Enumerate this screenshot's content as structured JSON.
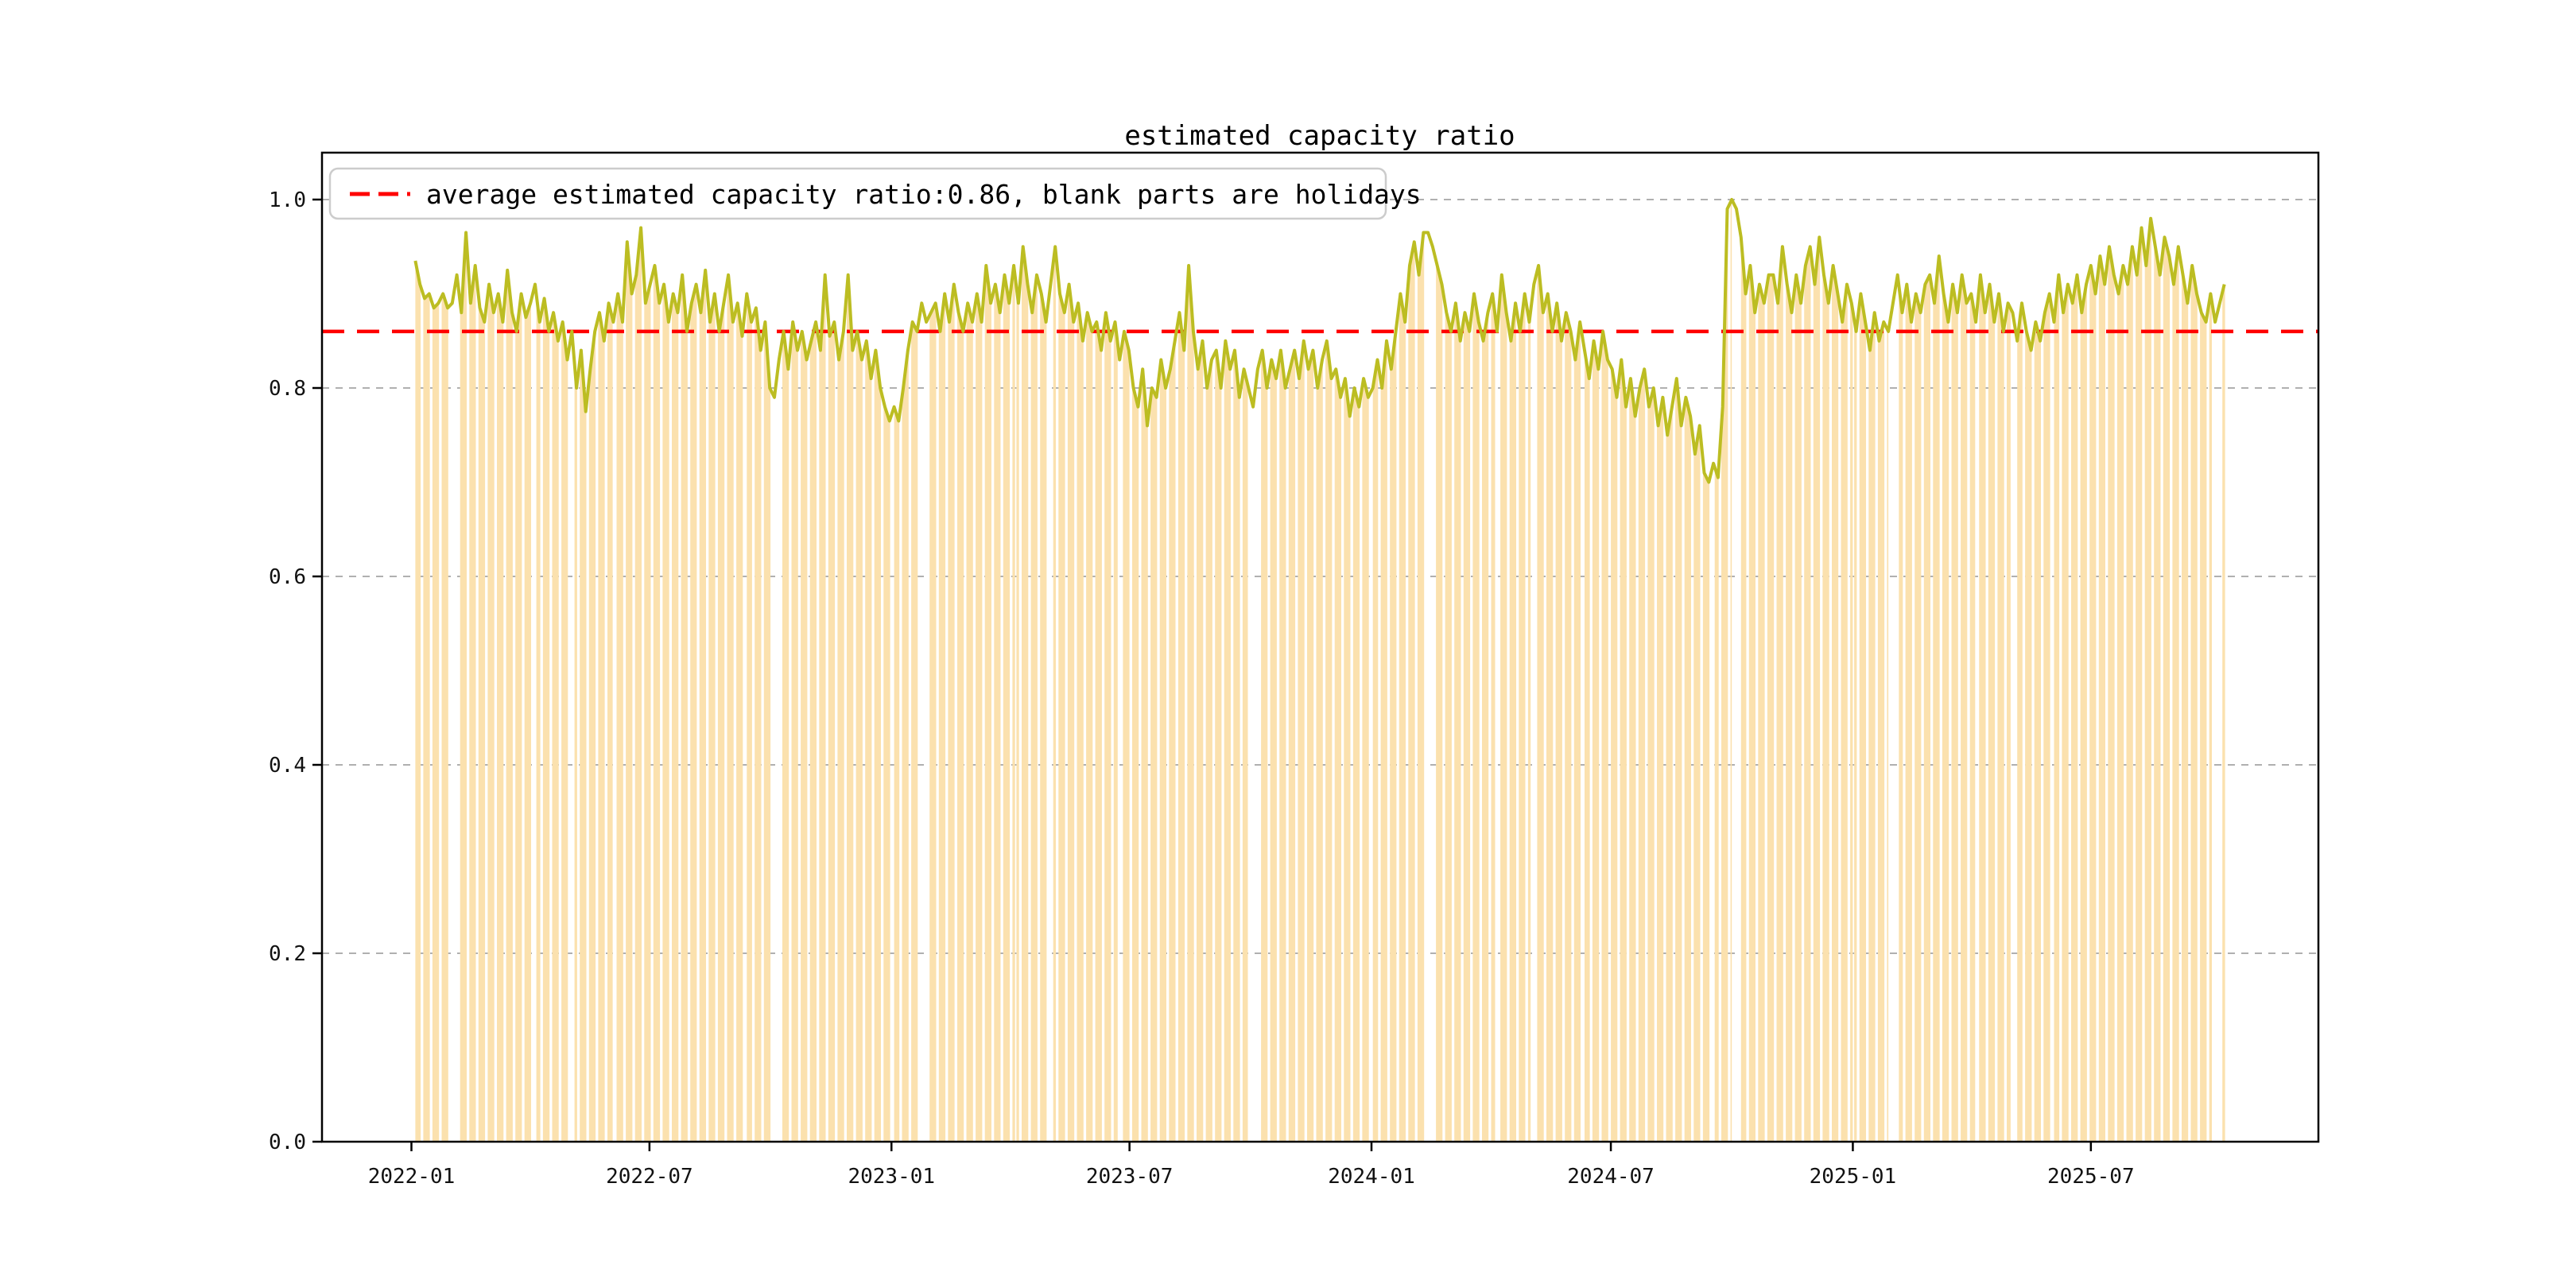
{
  "title": "estimated capacity ratio",
  "legend": {
    "label": "average estimated capacity ratio:0.86, blank parts are holidays",
    "swatch": "red-dashed-line"
  },
  "colors": {
    "line": "#bcbd22",
    "average_line": "#ff0000",
    "trading_band": "#fbe1ae",
    "grid": "#b0b0b0",
    "axis": "#000000",
    "legend_border": "#cccccc",
    "background": "#ffffff"
  },
  "axes": {
    "y_tick_labels": [
      "0.0",
      "0.2",
      "0.4",
      "0.6",
      "0.8",
      "1.0"
    ],
    "y_tick_values": [
      0.0,
      0.2,
      0.4,
      0.6,
      0.8,
      1.0
    ],
    "x_tick_labels": [
      "2022-01",
      "2022-07",
      "2023-01",
      "2023-07",
      "2024-01",
      "2024-07",
      "2025-01",
      "2025-07"
    ],
    "grid": "dashed-horizontal"
  },
  "chart_data": {
    "type": "line",
    "title": "estimated capacity ratio",
    "ylabel": "",
    "xlabel": "",
    "ylim": [
      0.0,
      1.05
    ],
    "average": 0.86,
    "bands_meaning": "filled vertical bands on trading days up to the line value; blank parts are holidays/weekends",
    "start_date": "2022-01-03",
    "end_date": "2025-10-10",
    "holidays": [
      [
        "2022-01-01",
        "2022-01-03"
      ],
      [
        "2022-01-31",
        "2022-02-04"
      ],
      [
        "2022-04-04",
        "2022-04-05"
      ],
      [
        "2022-05-02",
        "2022-05-04"
      ],
      [
        "2022-06-03",
        "2022-06-03"
      ],
      [
        "2022-09-12",
        "2022-09-12"
      ],
      [
        "2022-10-03",
        "2022-10-07"
      ],
      [
        "2023-01-02",
        "2023-01-02"
      ],
      [
        "2023-01-23",
        "2023-01-27"
      ],
      [
        "2023-04-05",
        "2023-04-05"
      ],
      [
        "2023-05-01",
        "2023-05-03"
      ],
      [
        "2023-06-22",
        "2023-06-23"
      ],
      [
        "2023-09-29",
        "2023-09-29"
      ],
      [
        "2023-10-02",
        "2023-10-06"
      ],
      [
        "2024-01-01",
        "2024-01-01"
      ],
      [
        "2024-02-12",
        "2024-02-16"
      ],
      [
        "2024-04-04",
        "2024-04-05"
      ],
      [
        "2024-05-01",
        "2024-05-03"
      ],
      [
        "2024-06-10",
        "2024-06-10"
      ],
      [
        "2024-09-16",
        "2024-09-17"
      ],
      [
        "2024-10-01",
        "2024-10-07"
      ],
      [
        "2025-01-01",
        "2025-01-01"
      ],
      [
        "2025-01-28",
        "2025-02-04"
      ],
      [
        "2025-04-04",
        "2025-04-04"
      ],
      [
        "2025-05-01",
        "2025-05-05"
      ],
      [
        "2025-06-02",
        "2025-06-02"
      ],
      [
        "2025-10-01",
        "2025-10-08"
      ]
    ],
    "series": [
      {
        "name": "estimated capacity ratio",
        "start": "2022-01-04",
        "cadence_days": 3.5,
        "values": [
          0.935,
          0.91,
          0.895,
          0.9,
          0.885,
          0.89,
          0.9,
          0.885,
          0.89,
          0.92,
          0.88,
          0.965,
          0.89,
          0.93,
          0.885,
          0.87,
          0.91,
          0.88,
          0.9,
          0.87,
          0.925,
          0.88,
          0.86,
          0.9,
          0.875,
          0.89,
          0.91,
          0.87,
          0.895,
          0.86,
          0.88,
          0.85,
          0.87,
          0.83,
          0.86,
          0.8,
          0.84,
          0.775,
          0.82,
          0.86,
          0.88,
          0.85,
          0.89,
          0.87,
          0.9,
          0.87,
          0.955,
          0.9,
          0.92,
          0.97,
          0.89,
          0.91,
          0.93,
          0.89,
          0.91,
          0.87,
          0.9,
          0.88,
          0.92,
          0.86,
          0.89,
          0.91,
          0.88,
          0.925,
          0.87,
          0.9,
          0.86,
          0.89,
          0.92,
          0.87,
          0.89,
          0.855,
          0.9,
          0.87,
          0.885,
          0.84,
          0.87,
          0.8,
          0.79,
          0.83,
          0.86,
          0.82,
          0.87,
          0.84,
          0.86,
          0.83,
          0.85,
          0.87,
          0.84,
          0.92,
          0.855,
          0.87,
          0.83,
          0.86,
          0.92,
          0.84,
          0.86,
          0.83,
          0.85,
          0.81,
          0.84,
          0.8,
          0.78,
          0.765,
          0.78,
          0.765,
          0.8,
          0.84,
          0.87,
          0.86,
          0.89,
          0.87,
          0.88,
          0.89,
          0.86,
          0.9,
          0.87,
          0.91,
          0.88,
          0.86,
          0.89,
          0.87,
          0.9,
          0.87,
          0.93,
          0.89,
          0.91,
          0.88,
          0.92,
          0.89,
          0.93,
          0.89,
          0.95,
          0.91,
          0.88,
          0.92,
          0.9,
          0.87,
          0.91,
          0.95,
          0.9,
          0.88,
          0.91,
          0.87,
          0.89,
          0.85,
          0.88,
          0.86,
          0.87,
          0.84,
          0.88,
          0.85,
          0.87,
          0.83,
          0.86,
          0.84,
          0.8,
          0.78,
          0.82,
          0.76,
          0.8,
          0.79,
          0.83,
          0.8,
          0.82,
          0.85,
          0.88,
          0.84,
          0.93,
          0.86,
          0.82,
          0.85,
          0.8,
          0.83,
          0.84,
          0.8,
          0.85,
          0.82,
          0.84,
          0.79,
          0.82,
          0.8,
          0.78,
          0.82,
          0.84,
          0.8,
          0.83,
          0.81,
          0.84,
          0.8,
          0.82,
          0.84,
          0.81,
          0.85,
          0.82,
          0.84,
          0.8,
          0.83,
          0.85,
          0.81,
          0.82,
          0.79,
          0.81,
          0.77,
          0.8,
          0.78,
          0.81,
          0.79,
          0.8,
          0.83,
          0.8,
          0.85,
          0.82,
          0.86,
          0.9,
          0.87,
          0.93,
          0.955,
          0.92,
          0.965,
          0.965,
          0.95,
          0.93,
          0.91,
          0.88,
          0.86,
          0.89,
          0.85,
          0.88,
          0.86,
          0.9,
          0.87,
          0.85,
          0.88,
          0.9,
          0.86,
          0.92,
          0.88,
          0.85,
          0.89,
          0.86,
          0.9,
          0.87,
          0.91,
          0.93,
          0.88,
          0.9,
          0.86,
          0.89,
          0.85,
          0.88,
          0.86,
          0.83,
          0.87,
          0.84,
          0.81,
          0.85,
          0.82,
          0.86,
          0.83,
          0.82,
          0.79,
          0.83,
          0.78,
          0.81,
          0.77,
          0.8,
          0.82,
          0.78,
          0.8,
          0.76,
          0.79,
          0.75,
          0.78,
          0.81,
          0.76,
          0.79,
          0.77,
          0.73,
          0.76,
          0.71,
          0.7,
          0.72,
          0.705,
          0.78,
          0.99,
          1.0,
          0.99,
          0.96,
          0.9,
          0.93,
          0.88,
          0.91,
          0.89,
          0.92,
          0.92,
          0.89,
          0.95,
          0.91,
          0.88,
          0.92,
          0.89,
          0.93,
          0.95,
          0.91,
          0.96,
          0.92,
          0.89,
          0.93,
          0.9,
          0.87,
          0.91,
          0.89,
          0.86,
          0.9,
          0.87,
          0.84,
          0.88,
          0.85,
          0.87,
          0.86,
          0.89,
          0.92,
          0.88,
          0.91,
          0.87,
          0.9,
          0.88,
          0.91,
          0.92,
          0.89,
          0.94,
          0.9,
          0.87,
          0.91,
          0.88,
          0.92,
          0.89,
          0.9,
          0.87,
          0.92,
          0.88,
          0.91,
          0.87,
          0.9,
          0.86,
          0.89,
          0.88,
          0.85,
          0.89,
          0.86,
          0.84,
          0.87,
          0.85,
          0.88,
          0.9,
          0.87,
          0.92,
          0.88,
          0.91,
          0.89,
          0.92,
          0.88,
          0.91,
          0.93,
          0.9,
          0.94,
          0.91,
          0.95,
          0.92,
          0.9,
          0.93,
          0.91,
          0.95,
          0.92,
          0.97,
          0.93,
          0.98,
          0.95,
          0.92,
          0.96,
          0.94,
          0.91,
          0.95,
          0.92,
          0.89,
          0.93,
          0.9,
          0.88,
          0.87,
          0.9,
          0.87,
          0.89,
          0.91
        ]
      }
    ]
  }
}
